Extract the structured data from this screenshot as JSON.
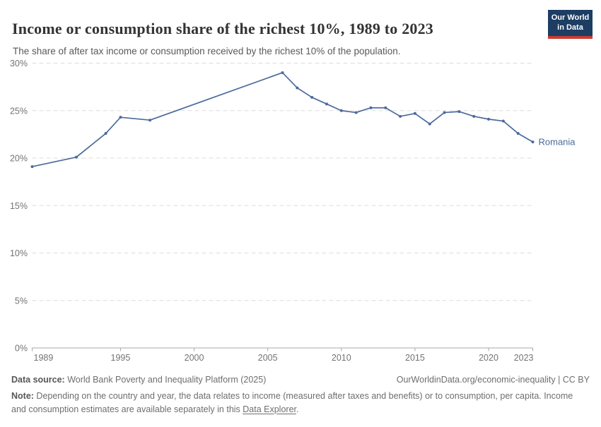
{
  "header": {
    "title": "Income or consumption share of the richest 10%, 1989 to 2023",
    "subtitle": "The share of after tax income or consumption received by the richest 10% of the population.",
    "logo_line1": "Our World",
    "logo_line2": "in Data"
  },
  "chart_data": {
    "type": "line",
    "title": "Income or consumption share of the richest 10%, 1989 to 2023",
    "xlabel": "",
    "ylabel": "",
    "xlim": [
      1989,
      2023
    ],
    "ylim": [
      0,
      30
    ],
    "y_ticks": [
      0,
      5,
      10,
      15,
      20,
      25,
      30
    ],
    "y_tick_suffix": "%",
    "x_ticks": [
      1989,
      1995,
      2000,
      2005,
      2010,
      2015,
      2020,
      2023
    ],
    "grid": "horizontal-dashed",
    "legend_position": "end-of-line-label",
    "x": [
      1989,
      1992,
      1994,
      1995,
      1997,
      2006,
      2007,
      2008,
      2009,
      2010,
      2011,
      2012,
      2013,
      2014,
      2015,
      2016,
      2017,
      2018,
      2019,
      2020,
      2021,
      2022,
      2023
    ],
    "series": [
      {
        "name": "Romania",
        "values": [
          19.1,
          20.1,
          22.6,
          24.3,
          24.0,
          29.0,
          27.4,
          26.4,
          25.7,
          25.0,
          24.8,
          25.3,
          25.3,
          24.4,
          24.7,
          23.6,
          24.8,
          24.9,
          24.4,
          24.1,
          23.9,
          22.6,
          21.7
        ]
      }
    ]
  },
  "colors": {
    "line": "#4c6a9c",
    "grid": "#dddddd",
    "axis": "#a8a8a8",
    "tick_text": "#737373",
    "logo_bg": "#1d3d63",
    "logo_accent": "#cb3b30"
  },
  "footer": {
    "source_label": "Data source:",
    "source_text": " World Bank Poverty and Inequality Platform (2025)",
    "rights": "OurWorldinData.org/economic-inequality | CC BY",
    "note_label": "Note:",
    "note_before_link": " Depending on the country and year, the data relates to income (measured after taxes and benefits) or to consumption, per capita. Income and consumption estimates are available separately in this ",
    "note_link": "Data Explorer",
    "note_after_link": "."
  }
}
